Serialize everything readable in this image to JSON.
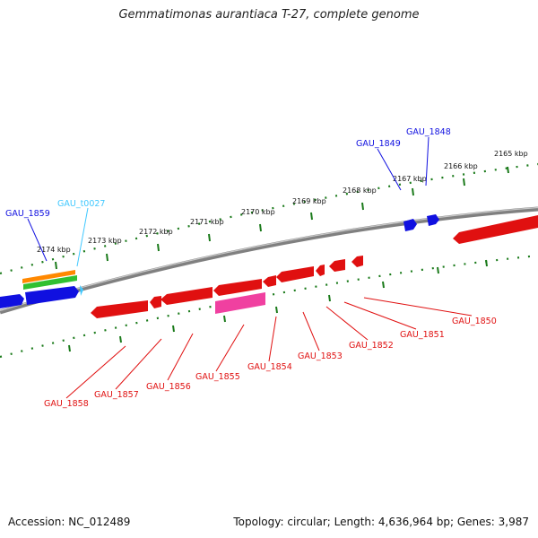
{
  "title": "Gemmatimonas aurantiaca T-27, complete genome",
  "footer": {
    "accession": "Accession: NC_012489",
    "summary": "Topology: circular; Length: 4,636,964 bp; Genes: 3,987"
  },
  "kbp_ticks": [
    "2165 kbp",
    "2166 kbp",
    "2167 kbp",
    "2168 kbp",
    "2169 kbp",
    "2170 kbp",
    "2171 kbp",
    "2172 kbp",
    "2173 kbp",
    "2174 kbp"
  ],
  "gene_labels": {
    "gau_1848": "GAU_1848",
    "gau_1849": "GAU_1849",
    "gau_1850": "GAU_1850",
    "gau_1851": "GAU_1851",
    "gau_1852": "GAU_1852",
    "gau_1853": "GAU_1853",
    "gau_1854": "GAU_1854",
    "gau_1855": "GAU_1855",
    "gau_1856": "GAU_1856",
    "gau_1857": "GAU_1857",
    "gau_1858": "GAU_1858",
    "gau_1859": "GAU_1859",
    "gau_t0027": "GAU_t0027"
  },
  "colors": {
    "forward_cds": "#1010e0",
    "reverse_cds": "#e01010",
    "trna": "#40c8ff",
    "backbone": "#808080",
    "ticks": "#1a7a1a",
    "pink_feature": "#f040a0",
    "orange_feature": "#ff8800",
    "green_feature": "#30c030"
  }
}
